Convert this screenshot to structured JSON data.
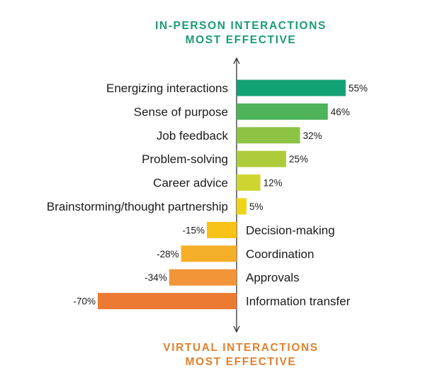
{
  "chart_data": {
    "type": "bar",
    "orientation": "horizontal",
    "top_caption": [
      "IN-PERSON INTERACTIONS",
      "MOST EFFECTIVE"
    ],
    "bottom_caption": [
      "VIRTUAL INTERACTIONS",
      "MOST EFFECTIVE"
    ],
    "value_suffix": "%",
    "categories": [
      "Energizing interactions",
      "Sense of purpose",
      "Job feedback",
      "Problem-solving",
      "Career advice",
      "Brainstorming/thought partnership",
      "Decision-making",
      "Coordination",
      "Approvals",
      "Information transfer"
    ],
    "values": [
      55,
      46,
      32,
      25,
      12,
      5,
      -15,
      -28,
      -34,
      -70
    ],
    "colors": [
      "#13a176",
      "#4fb35a",
      "#8cc342",
      "#aecc3a",
      "#cfd530",
      "#f0d516",
      "#f8c316",
      "#f5ae27",
      "#f29538",
      "#ec7a33"
    ],
    "xlim": [
      -70,
      55
    ],
    "axis_color": "#222222"
  }
}
